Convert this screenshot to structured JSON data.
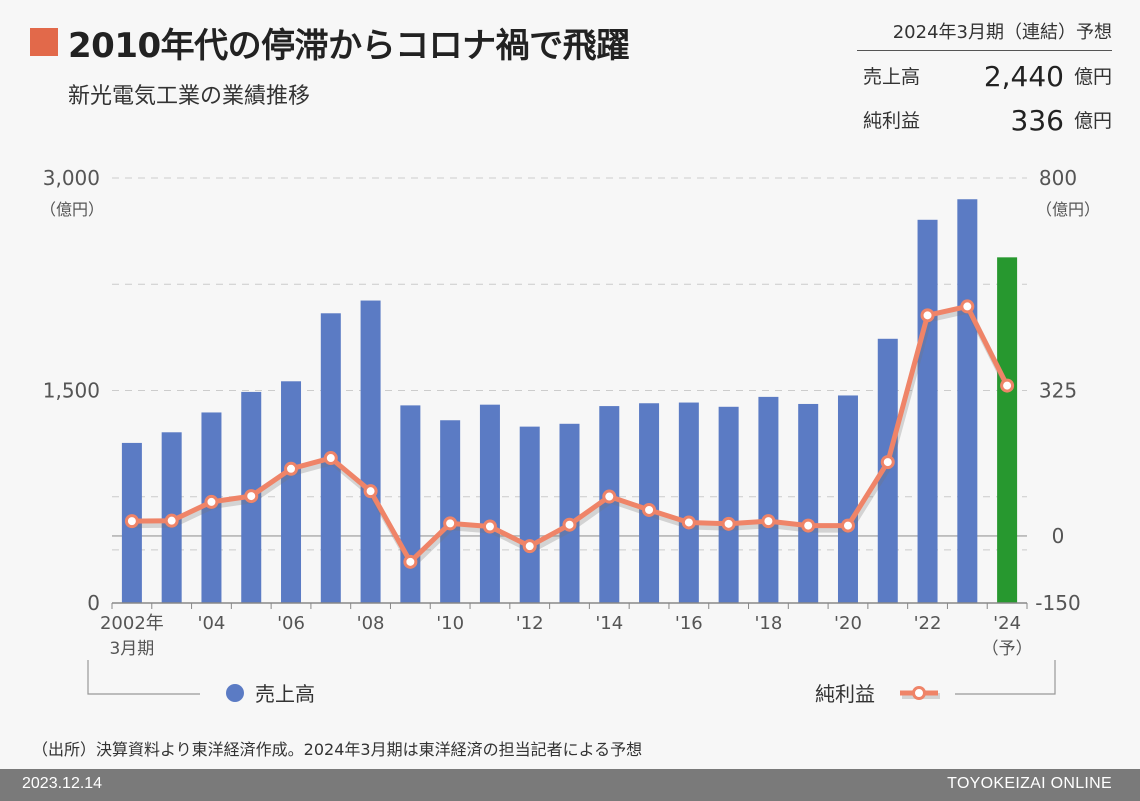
{
  "header": {
    "title": "2010年代の停滞からコロナ禍で飛躍",
    "subtitle": "新光電気工業の業績推移"
  },
  "forecast": {
    "heading": "2024年3月期（連結）予想",
    "sales_label": "売上高",
    "sales_value": "2,440",
    "sales_unit": "億円",
    "profit_label": "純利益",
    "profit_value": "336",
    "profit_unit": "億円"
  },
  "chart_data": {
    "type": "bar+line",
    "categories": [
      "2002",
      "2003",
      "2004",
      "2005",
      "2006",
      "2007",
      "2008",
      "2009",
      "2010",
      "2011",
      "2012",
      "2013",
      "2014",
      "2015",
      "2016",
      "2017",
      "2018",
      "2019",
      "2020",
      "2021",
      "2022",
      "2023",
      "2024"
    ],
    "x_tick_labels": [
      {
        "index": 0,
        "text": "2002年",
        "sub": "3月期"
      },
      {
        "index": 2,
        "text": "'04"
      },
      {
        "index": 4,
        "text": "'06"
      },
      {
        "index": 6,
        "text": "'08"
      },
      {
        "index": 8,
        "text": "'10"
      },
      {
        "index": 10,
        "text": "'12"
      },
      {
        "index": 12,
        "text": "'14"
      },
      {
        "index": 14,
        "text": "'16"
      },
      {
        "index": 16,
        "text": "'18"
      },
      {
        "index": 18,
        "text": "'20"
      },
      {
        "index": 20,
        "text": "'22"
      },
      {
        "index": 22,
        "text": "'24",
        "sub": "（予）"
      }
    ],
    "series": [
      {
        "name": "売上高",
        "type": "bar",
        "axis": "left",
        "color": "#5b7bc4",
        "forecast_color": "#27982f",
        "values": [
          1130,
          1205,
          1345,
          1490,
          1565,
          2045,
          2135,
          1395,
          1290,
          1400,
          1245,
          1265,
          1390,
          1410,
          1415,
          1385,
          1455,
          1405,
          1465,
          1865,
          2705,
          2850,
          2440
        ]
      },
      {
        "name": "純利益",
        "type": "line",
        "axis": "right",
        "color": "#ef8468",
        "values": [
          33,
          34,
          76,
          89,
          150,
          174,
          100,
          -58,
          28,
          21,
          -23,
          25,
          88,
          58,
          30,
          27,
          33,
          23,
          23,
          165,
          493,
          513,
          336
        ]
      }
    ],
    "left_axis": {
      "min": 0,
      "max": 3000,
      "ticks": [
        {
          "value": 0,
          "label": "0"
        },
        {
          "value": 1500,
          "label": "1,500"
        },
        {
          "value": 3000,
          "label": "3,000"
        }
      ],
      "unit": "（億円）"
    },
    "right_axis": {
      "min": -150,
      "max": 800,
      "ticks": [
        {
          "value": -150,
          "label": "-150"
        },
        {
          "value": 0,
          "label": "0"
        },
        {
          "value": 325,
          "label": "325"
        },
        {
          "value": 800,
          "label": "800"
        }
      ],
      "unit": "（億円）"
    },
    "legend": {
      "bar_label": "売上高",
      "line_label": "純利益",
      "placement": "bottom"
    }
  },
  "footer": {
    "source_note": "（出所）決算資料より東洋経済作成。2024年3月期は東洋経済の担当記者による予想",
    "date": "2023.12.14",
    "brand": "TOYOKEIZAI ONLINE"
  }
}
